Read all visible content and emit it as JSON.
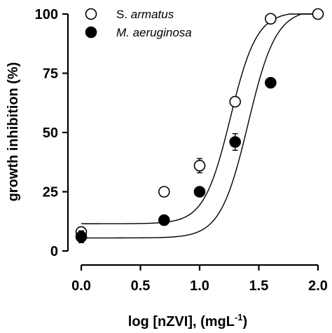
{
  "chart_data": {
    "type": "scatter",
    "xlabel": "log [nZVI], (mgL",
    "xlabel_sup": "-1",
    "xlabel_tail": ")",
    "ylabel": "growth inhibition (%)",
    "xlim": [
      0.0,
      2.0
    ],
    "ylim": [
      0,
      100
    ],
    "x_ticks": [
      "0.0",
      "0.5",
      "1.0",
      "1.5",
      "2.0"
    ],
    "y_ticks": [
      "0",
      "25",
      "50",
      "75",
      "100"
    ],
    "x_tick_values": [
      0.0,
      0.5,
      1.0,
      1.5,
      2.0
    ],
    "y_tick_values": [
      0,
      25,
      50,
      75,
      100
    ],
    "grid": false,
    "legend_position": "top-left",
    "series": [
      {
        "name_prefix": "S. ",
        "name_italic": "armatus",
        "marker": "open-circle",
        "color": "#000000",
        "x": [
          0.0,
          0.7,
          1.0,
          1.3,
          1.6,
          2.0
        ],
        "y": [
          8,
          25,
          36,
          63,
          98,
          100
        ],
        "err": [
          2,
          0,
          3,
          0,
          0,
          0
        ],
        "fit": {
          "bottom": 11.5,
          "top": 101,
          "x50": 1.26,
          "slope": 3.9
        }
      },
      {
        "name_prefix": "",
        "name_italic": "M. aeruginosa",
        "marker": "filled-circle",
        "color": "#000000",
        "x": [
          0.0,
          0.7,
          1.0,
          1.3,
          1.6
        ],
        "y": [
          6,
          13,
          25,
          46,
          71
        ],
        "err": [
          2.5,
          2,
          0,
          3.5,
          0
        ],
        "fit": {
          "bottom": 5.5,
          "top": 102,
          "x50": 1.41,
          "slope": 3.7
        }
      }
    ]
  }
}
